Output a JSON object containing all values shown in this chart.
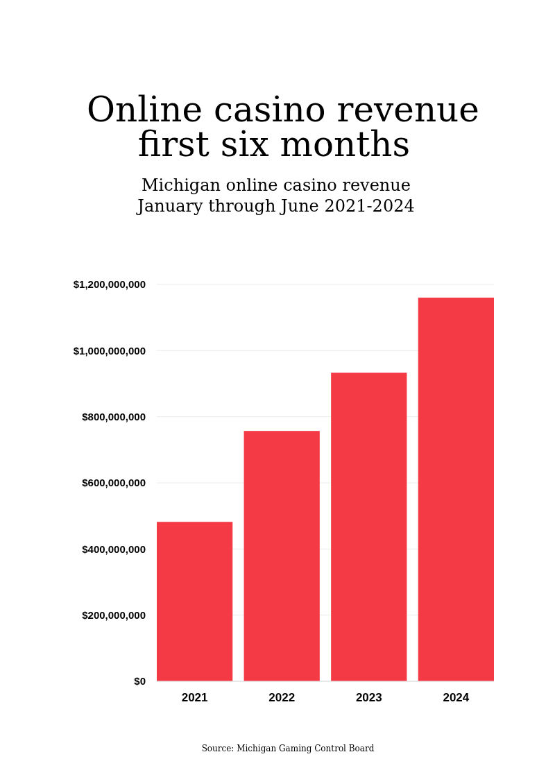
{
  "chart_data": {
    "type": "bar",
    "title": "Online casino revenue\nfirst six months",
    "subtitle": "Michigan online casino revenue\nJanuary through June 2021-2024",
    "categories": [
      "2021",
      "2022",
      "2023",
      "2024"
    ],
    "values": [
      482000000,
      757000000,
      933000000,
      1160000000
    ],
    "color": "#f43a45",
    "ylim": [
      0,
      1200000000
    ],
    "yticks": [
      {
        "value": 0,
        "label": "$0"
      },
      {
        "value": 200000000,
        "label": "$200,000,000"
      },
      {
        "value": 400000000,
        "label": "$400,000,000"
      },
      {
        "value": 600000000,
        "label": "$600,000,000"
      },
      {
        "value": 800000000,
        "label": "$800,000,000"
      },
      {
        "value": 1000000000,
        "label": "$1,000,000,000"
      },
      {
        "value": 1200000000,
        "label": "$1,200,000,000"
      }
    ],
    "grid": "y",
    "annotations": [
      "Source: Michigan Gaming Control Board"
    ]
  }
}
